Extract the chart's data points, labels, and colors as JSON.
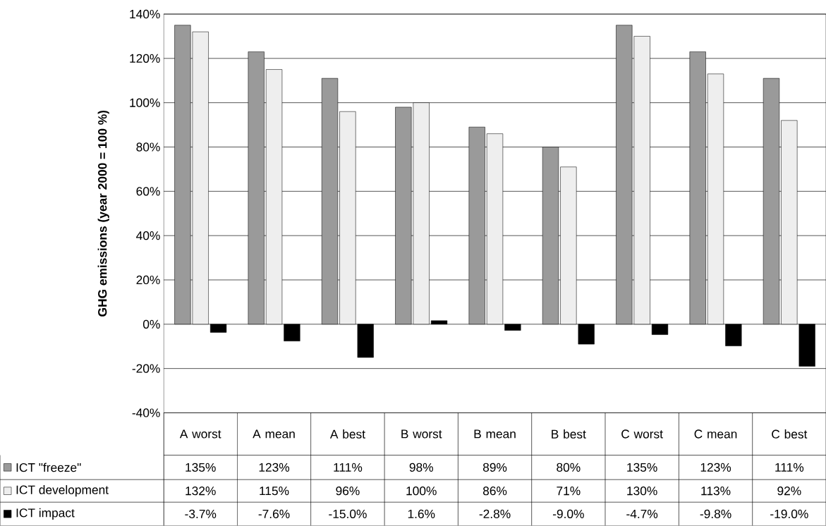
{
  "chart_data": {
    "type": "bar",
    "ylabel": "GHG emissions (year 2000 = 100 %)",
    "categories": [
      "A worst",
      "A mean",
      "A best",
      "B worst",
      "B mean",
      "B best",
      "C worst",
      "C mean",
      "C best"
    ],
    "series": [
      {
        "name": "ICT \"freeze\"",
        "color": "#9a9a9a",
        "values": [
          135,
          123,
          111,
          98,
          89,
          80,
          135,
          123,
          111
        ],
        "value_labels": [
          "135%",
          "123%",
          "111%",
          "98%",
          "89%",
          "80%",
          "135%",
          "123%",
          "111%"
        ]
      },
      {
        "name": "ICT development",
        "color": "#eeeeee",
        "values": [
          132,
          115,
          96,
          100,
          86,
          71,
          130,
          113,
          92
        ],
        "value_labels": [
          "132%",
          "115%",
          "96%",
          "100%",
          "86%",
          "71%",
          "130%",
          "113%",
          "92%"
        ]
      },
      {
        "name": "ICT impact",
        "color": "#000000",
        "values": [
          -3.7,
          -7.6,
          -15.0,
          1.6,
          -2.8,
          -9.0,
          -4.7,
          -9.8,
          -19.0
        ],
        "value_labels": [
          "-3.7%",
          "-7.6%",
          "-15.0%",
          "1.6%",
          "-2.8%",
          "-9.0%",
          "-4.7%",
          "-9.8%",
          "-19.0%"
        ]
      }
    ],
    "ylim": [
      -40,
      140
    ],
    "yticks": [
      {
        "value": -40,
        "label": "-40%"
      },
      {
        "value": -20,
        "label": "-20%"
      },
      {
        "value": 0,
        "label": "0%"
      },
      {
        "value": 20,
        "label": "20%"
      },
      {
        "value": 40,
        "label": "40%"
      },
      {
        "value": 60,
        "label": "60%"
      },
      {
        "value": 80,
        "label": "80%"
      },
      {
        "value": 100,
        "label": "100%"
      },
      {
        "value": 120,
        "label": "120%"
      },
      {
        "value": 140,
        "label": "140%"
      }
    ],
    "grid": "y",
    "legend": "bottom"
  }
}
